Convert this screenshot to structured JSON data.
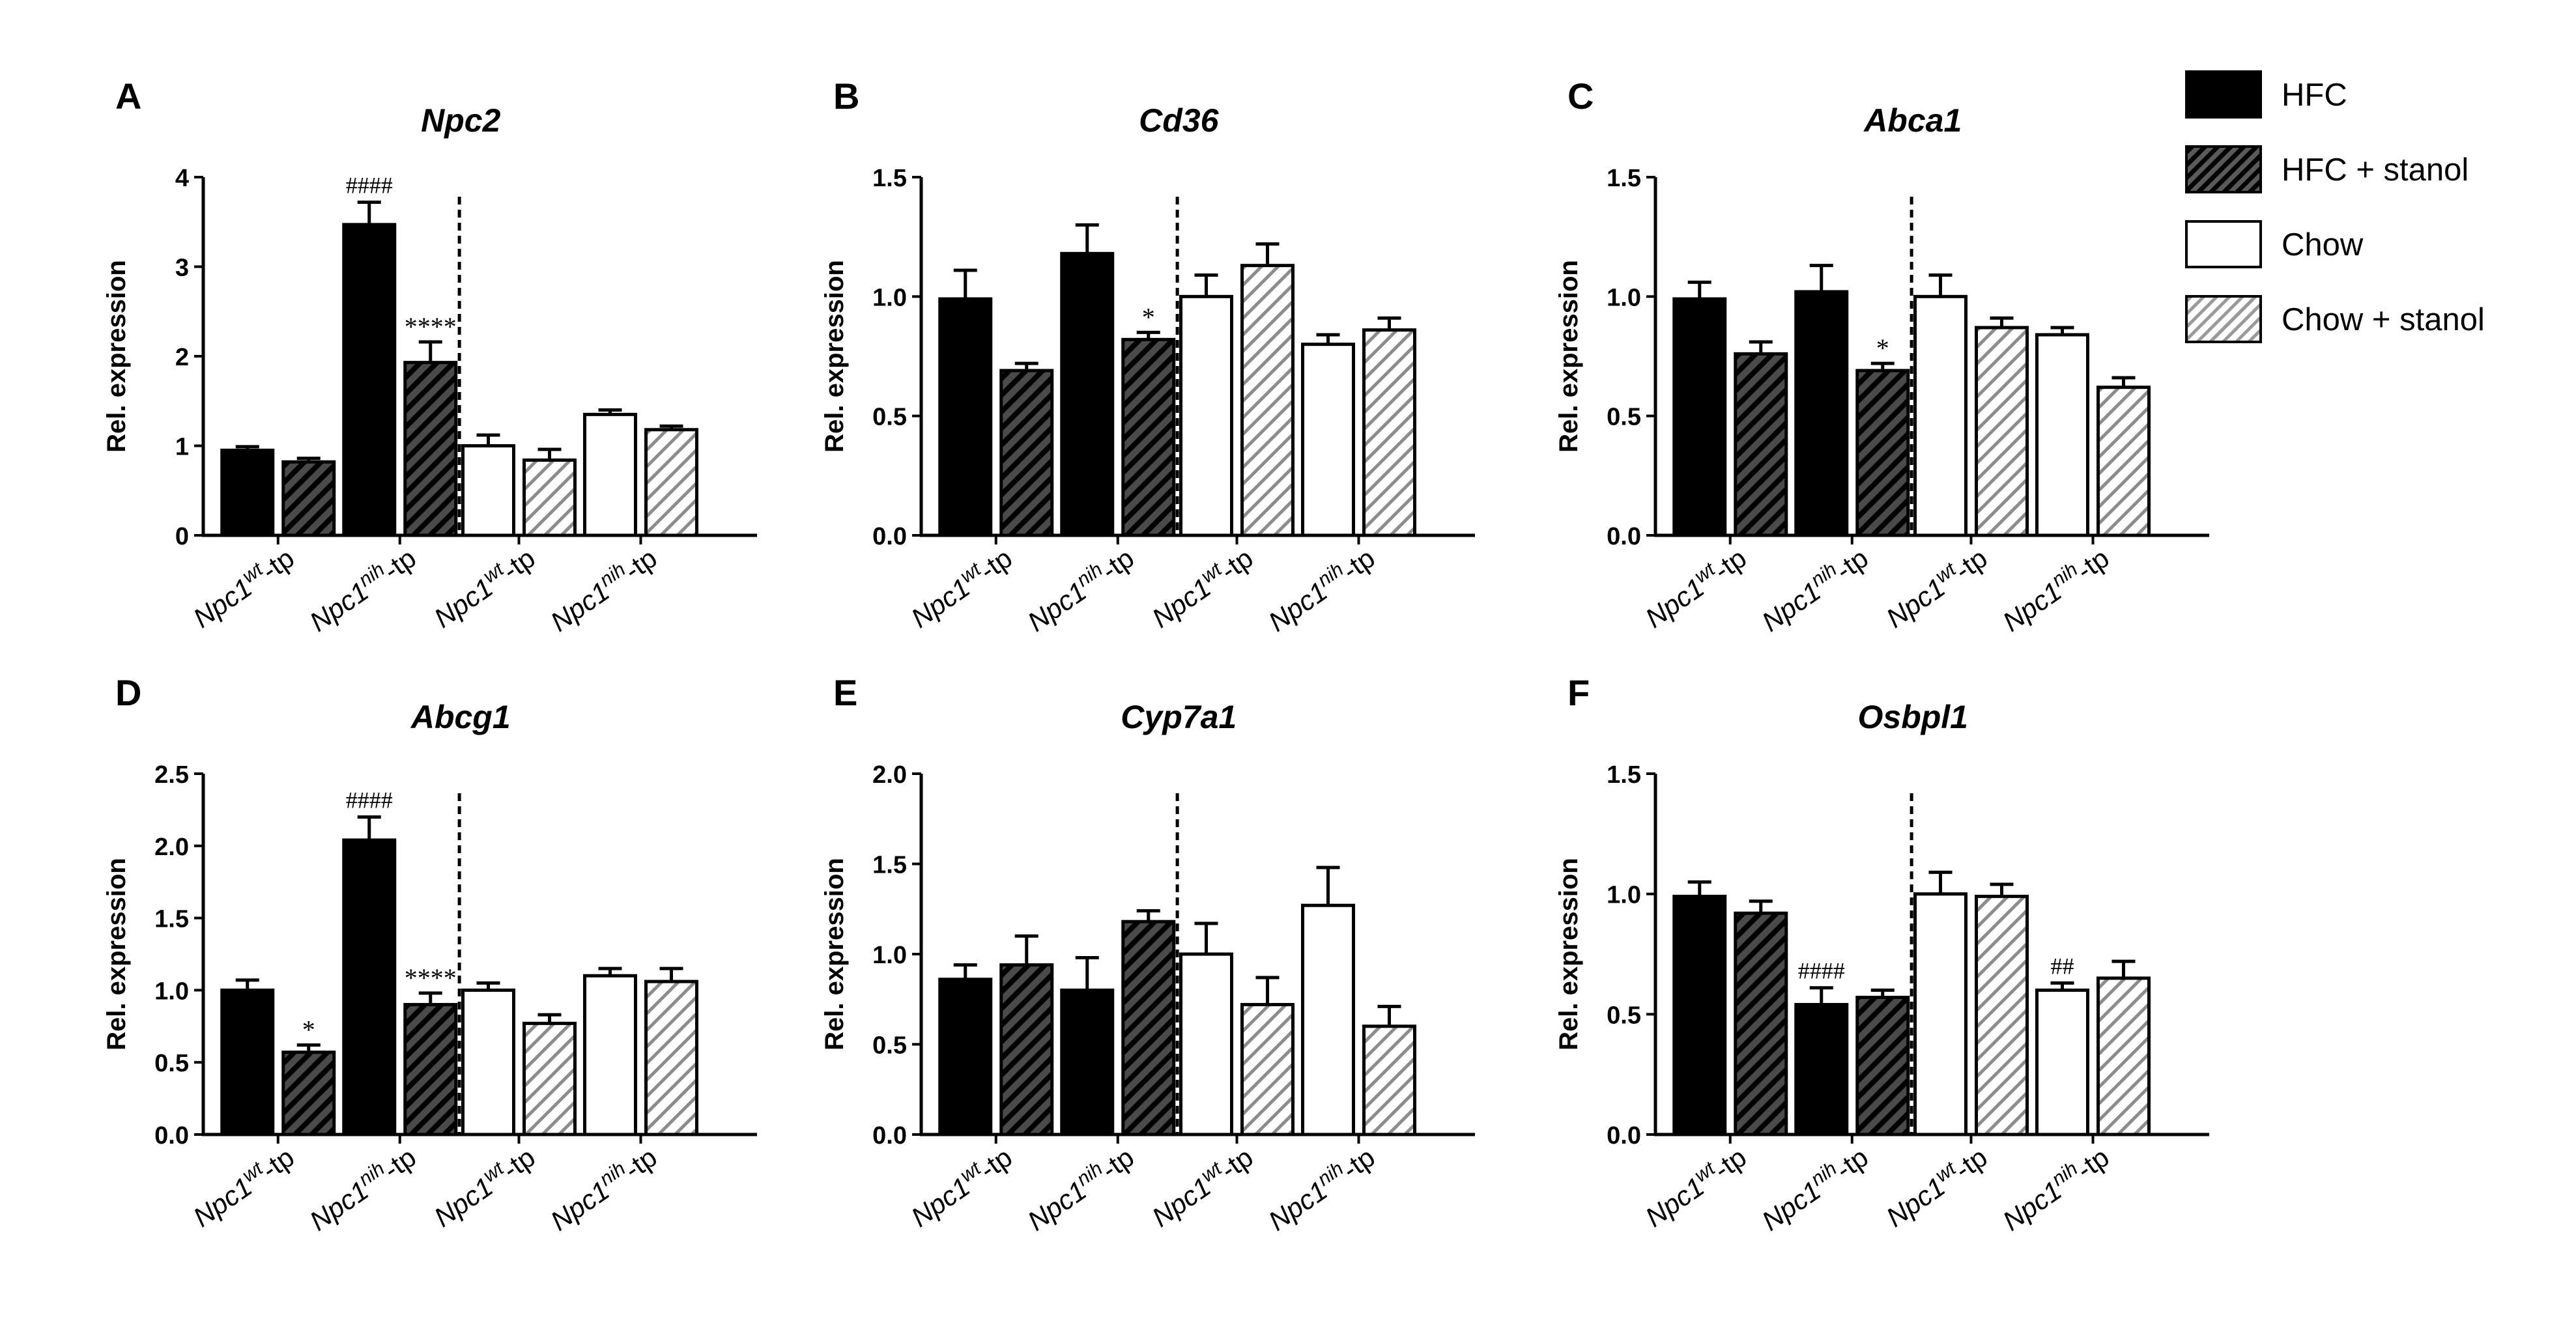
{
  "legend": {
    "items": [
      {
        "label": "HFC",
        "style": "solid"
      },
      {
        "label": "HFC + stanol",
        "style": "hatch-dark"
      },
      {
        "label": "Chow",
        "style": "open"
      },
      {
        "label": "Chow + stanol",
        "style": "hatch-light"
      }
    ]
  },
  "colors": {
    "bar_fill_dark": "#000000",
    "bar_fill_open": "#ffffff",
    "hatch_dark_bg": "#4a4a4a",
    "hatch_light": "#8c8c8c",
    "axis": "#000000"
  },
  "chart_data": [
    {
      "panel": "A",
      "type": "bar",
      "title": "Npc2",
      "ylabel": "Rel. expression",
      "ylim": [
        0,
        4
      ],
      "yticks": [
        0,
        1,
        2,
        3,
        4
      ],
      "ytick_labels": [
        "0",
        "1",
        "2",
        "3",
        "4"
      ],
      "categories": [
        "Npc1wt-tp",
        "Npc1nih-tp",
        "Npc1wt-tp",
        "Npc1nih-tp"
      ],
      "category_labels": [
        {
          "base": "Npc1",
          "sup": "wt",
          "tail": "-tp"
        },
        {
          "base": "Npc1",
          "sup": "nih",
          "tail": "-tp"
        },
        {
          "base": "Npc1",
          "sup": "wt",
          "tail": "-tp"
        },
        {
          "base": "Npc1",
          "sup": "nih",
          "tail": "-tp"
        }
      ],
      "divider_after_group": 1,
      "bars": [
        {
          "series": "HFC",
          "group": 0,
          "value": 0.95,
          "error": 0.04,
          "annotation": ""
        },
        {
          "series": "HFC + stanol",
          "group": 0,
          "value": 0.82,
          "error": 0.04,
          "annotation": ""
        },
        {
          "series": "HFC",
          "group": 1,
          "value": 3.47,
          "error": 0.25,
          "annotation": "####"
        },
        {
          "series": "HFC + stanol",
          "group": 1,
          "value": 1.93,
          "error": 0.23,
          "annotation": "****"
        },
        {
          "series": "Chow",
          "group": 2,
          "value": 1.0,
          "error": 0.12,
          "annotation": ""
        },
        {
          "series": "Chow + stanol",
          "group": 2,
          "value": 0.84,
          "error": 0.12,
          "annotation": ""
        },
        {
          "series": "Chow",
          "group": 3,
          "value": 1.35,
          "error": 0.05,
          "annotation": ""
        },
        {
          "series": "Chow + stanol",
          "group": 3,
          "value": 1.18,
          "error": 0.04,
          "annotation": ""
        }
      ]
    },
    {
      "panel": "B",
      "type": "bar",
      "title": "Cd36",
      "ylabel": "Rel. expression",
      "ylim": [
        0,
        1.5
      ],
      "yticks": [
        0,
        0.5,
        1,
        1.5
      ],
      "ytick_labels": [
        "0.0",
        "0.5",
        "1.0",
        "1.5"
      ],
      "categories": [
        "Npc1wt-tp",
        "Npc1nih-tp",
        "Npc1wt-tp",
        "Npc1nih-tp"
      ],
      "category_labels": [
        {
          "base": "Npc1",
          "sup": "wt",
          "tail": "-tp"
        },
        {
          "base": "Npc1",
          "sup": "nih",
          "tail": "-tp"
        },
        {
          "base": "Npc1",
          "sup": "wt",
          "tail": "-tp"
        },
        {
          "base": "Npc1",
          "sup": "nih",
          "tail": "-tp"
        }
      ],
      "divider_after_group": 1,
      "bars": [
        {
          "series": "HFC",
          "group": 0,
          "value": 0.99,
          "error": 0.12,
          "annotation": ""
        },
        {
          "series": "HFC + stanol",
          "group": 0,
          "value": 0.69,
          "error": 0.03,
          "annotation": ""
        },
        {
          "series": "HFC",
          "group": 1,
          "value": 1.18,
          "error": 0.12,
          "annotation": ""
        },
        {
          "series": "HFC + stanol",
          "group": 1,
          "value": 0.82,
          "error": 0.03,
          "annotation": "*"
        },
        {
          "series": "Chow",
          "group": 2,
          "value": 1.0,
          "error": 0.09,
          "annotation": ""
        },
        {
          "series": "Chow + stanol",
          "group": 2,
          "value": 1.13,
          "error": 0.09,
          "annotation": ""
        },
        {
          "series": "Chow",
          "group": 3,
          "value": 0.8,
          "error": 0.04,
          "annotation": ""
        },
        {
          "series": "Chow + stanol",
          "group": 3,
          "value": 0.86,
          "error": 0.05,
          "annotation": ""
        }
      ]
    },
    {
      "panel": "C",
      "type": "bar",
      "title": "Abca1",
      "ylabel": "Rel. expression",
      "ylim": [
        0,
        1.5
      ],
      "yticks": [
        0,
        0.5,
        1,
        1.5
      ],
      "ytick_labels": [
        "0.0",
        "0.5",
        "1.0",
        "1.5"
      ],
      "categories": [
        "Npc1wt-tp",
        "Npc1nih-tp",
        "Npc1wt-tp",
        "Npc1nih-tp"
      ],
      "category_labels": [
        {
          "base": "Npc1",
          "sup": "wt",
          "tail": "-tp"
        },
        {
          "base": "Npc1",
          "sup": "nih",
          "tail": "-tp"
        },
        {
          "base": "Npc1",
          "sup": "wt",
          "tail": "-tp"
        },
        {
          "base": "Npc1",
          "sup": "nih",
          "tail": "-tp"
        }
      ],
      "divider_after_group": 1,
      "bars": [
        {
          "series": "HFC",
          "group": 0,
          "value": 0.99,
          "error": 0.07,
          "annotation": ""
        },
        {
          "series": "HFC + stanol",
          "group": 0,
          "value": 0.76,
          "error": 0.05,
          "annotation": ""
        },
        {
          "series": "HFC",
          "group": 1,
          "value": 1.02,
          "error": 0.11,
          "annotation": ""
        },
        {
          "series": "HFC + stanol",
          "group": 1,
          "value": 0.69,
          "error": 0.03,
          "annotation": "*"
        },
        {
          "series": "Chow",
          "group": 2,
          "value": 1.0,
          "error": 0.09,
          "annotation": ""
        },
        {
          "series": "Chow + stanol",
          "group": 2,
          "value": 0.87,
          "error": 0.04,
          "annotation": ""
        },
        {
          "series": "Chow",
          "group": 3,
          "value": 0.84,
          "error": 0.03,
          "annotation": ""
        },
        {
          "series": "Chow + stanol",
          "group": 3,
          "value": 0.62,
          "error": 0.04,
          "annotation": ""
        }
      ]
    },
    {
      "panel": "D",
      "type": "bar",
      "title": "Abcg1",
      "ylabel": "Rel. expression",
      "ylim": [
        0,
        2.5
      ],
      "yticks": [
        0,
        0.5,
        1,
        1.5,
        2,
        2.5
      ],
      "ytick_labels": [
        "0.0",
        "0.5",
        "1.0",
        "1.5",
        "2.0",
        "2.5"
      ],
      "categories": [
        "Npc1wt-tp",
        "Npc1nih-tp",
        "Npc1wt-tp",
        "Npc1nih-tp"
      ],
      "category_labels": [
        {
          "base": "Npc1",
          "sup": "wt",
          "tail": "-tp"
        },
        {
          "base": "Npc1",
          "sup": "nih",
          "tail": "-tp"
        },
        {
          "base": "Npc1",
          "sup": "wt",
          "tail": "-tp"
        },
        {
          "base": "Npc1",
          "sup": "nih",
          "tail": "-tp"
        }
      ],
      "divider_after_group": 1,
      "bars": [
        {
          "series": "HFC",
          "group": 0,
          "value": 1.0,
          "error": 0.07,
          "annotation": ""
        },
        {
          "series": "HFC + stanol",
          "group": 0,
          "value": 0.57,
          "error": 0.05,
          "annotation": "*"
        },
        {
          "series": "HFC",
          "group": 1,
          "value": 2.04,
          "error": 0.16,
          "annotation": "####"
        },
        {
          "series": "HFC + stanol",
          "group": 1,
          "value": 0.9,
          "error": 0.08,
          "annotation": "****"
        },
        {
          "series": "Chow",
          "group": 2,
          "value": 1.0,
          "error": 0.05,
          "annotation": ""
        },
        {
          "series": "Chow + stanol",
          "group": 2,
          "value": 0.77,
          "error": 0.06,
          "annotation": ""
        },
        {
          "series": "Chow",
          "group": 3,
          "value": 1.1,
          "error": 0.05,
          "annotation": ""
        },
        {
          "series": "Chow + stanol",
          "group": 3,
          "value": 1.06,
          "error": 0.09,
          "annotation": ""
        }
      ]
    },
    {
      "panel": "E",
      "type": "bar",
      "title": "Cyp7a1",
      "ylabel": "Rel. expression",
      "ylim": [
        0,
        2
      ],
      "yticks": [
        0,
        0.5,
        1,
        1.5,
        2
      ],
      "ytick_labels": [
        "0.0",
        "0.5",
        "1.0",
        "1.5",
        "2.0"
      ],
      "categories": [
        "Npc1wt-tp",
        "Npc1nih-tp",
        "Npc1wt-tp",
        "Npc1nih-tp"
      ],
      "category_labels": [
        {
          "base": "Npc1",
          "sup": "wt",
          "tail": "-tp"
        },
        {
          "base": "Npc1",
          "sup": "nih",
          "tail": "-tp"
        },
        {
          "base": "Npc1",
          "sup": "wt",
          "tail": "-tp"
        },
        {
          "base": "Npc1",
          "sup": "nih",
          "tail": "-tp"
        }
      ],
      "divider_after_group": 1,
      "bars": [
        {
          "series": "HFC",
          "group": 0,
          "value": 0.86,
          "error": 0.08,
          "annotation": ""
        },
        {
          "series": "HFC + stanol",
          "group": 0,
          "value": 0.94,
          "error": 0.16,
          "annotation": ""
        },
        {
          "series": "HFC",
          "group": 1,
          "value": 0.8,
          "error": 0.18,
          "annotation": ""
        },
        {
          "series": "HFC + stanol",
          "group": 1,
          "value": 1.18,
          "error": 0.06,
          "annotation": ""
        },
        {
          "series": "Chow",
          "group": 2,
          "value": 1.0,
          "error": 0.17,
          "annotation": ""
        },
        {
          "series": "Chow + stanol",
          "group": 2,
          "value": 0.72,
          "error": 0.15,
          "annotation": ""
        },
        {
          "series": "Chow",
          "group": 3,
          "value": 1.27,
          "error": 0.21,
          "annotation": ""
        },
        {
          "series": "Chow + stanol",
          "group": 3,
          "value": 0.6,
          "error": 0.11,
          "annotation": ""
        }
      ]
    },
    {
      "panel": "F",
      "type": "bar",
      "title": "Osbpl1",
      "ylabel": "Rel. expression",
      "ylim": [
        0,
        1.5
      ],
      "yticks": [
        0,
        0.5,
        1,
        1.5
      ],
      "ytick_labels": [
        "0.0",
        "0.5",
        "1.0",
        "1.5"
      ],
      "categories": [
        "Npc1wt-tp",
        "Npc1nih-tp",
        "Npc1wt-tp",
        "Npc1nih-tp"
      ],
      "category_labels": [
        {
          "base": "Npc1",
          "sup": "wt",
          "tail": "-tp"
        },
        {
          "base": "Npc1",
          "sup": "nih",
          "tail": "-tp"
        },
        {
          "base": "Npc1",
          "sup": "wt",
          "tail": "-tp"
        },
        {
          "base": "Npc1",
          "sup": "nih",
          "tail": "-tp"
        }
      ],
      "divider_after_group": 1,
      "bars": [
        {
          "series": "HFC",
          "group": 0,
          "value": 0.99,
          "error": 0.06,
          "annotation": ""
        },
        {
          "series": "HFC + stanol",
          "group": 0,
          "value": 0.92,
          "error": 0.05,
          "annotation": ""
        },
        {
          "series": "HFC",
          "group": 1,
          "value": 0.54,
          "error": 0.07,
          "annotation": "####"
        },
        {
          "series": "HFC + stanol",
          "group": 1,
          "value": 0.57,
          "error": 0.03,
          "annotation": ""
        },
        {
          "series": "Chow",
          "group": 2,
          "value": 1.0,
          "error": 0.09,
          "annotation": ""
        },
        {
          "series": "Chow + stanol",
          "group": 2,
          "value": 0.99,
          "error": 0.05,
          "annotation": ""
        },
        {
          "series": "Chow",
          "group": 3,
          "value": 0.6,
          "error": 0.03,
          "annotation": "##"
        },
        {
          "series": "Chow + stanol",
          "group": 3,
          "value": 0.65,
          "error": 0.07,
          "annotation": ""
        }
      ]
    }
  ]
}
